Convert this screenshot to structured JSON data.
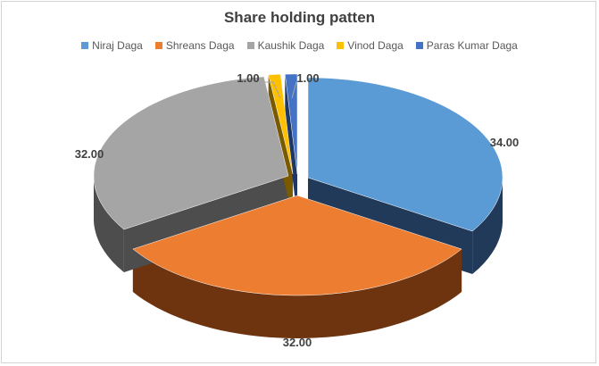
{
  "chart_data": {
    "type": "pie",
    "title": "Share holding patten",
    "legend_position": "top",
    "exploded": true,
    "three_d": true,
    "categories": [
      "Niraj Daga",
      "Shreans Daga",
      "Kaushik Daga",
      "Vinod Daga",
      "Paras Kumar Daga"
    ],
    "values": [
      34,
      32,
      32,
      1,
      1
    ],
    "value_labels": [
      "34.00",
      "32.00",
      "32.00",
      "1.00",
      "1.00"
    ],
    "colors": [
      "#5b9bd5",
      "#ed7d31",
      "#a5a5a5",
      "#ffc000",
      "#4472c4"
    ],
    "side_colors": [
      "#223a5a",
      "#6e3410",
      "#4d4d4d",
      "#7a5a00",
      "#1f3764"
    ]
  }
}
